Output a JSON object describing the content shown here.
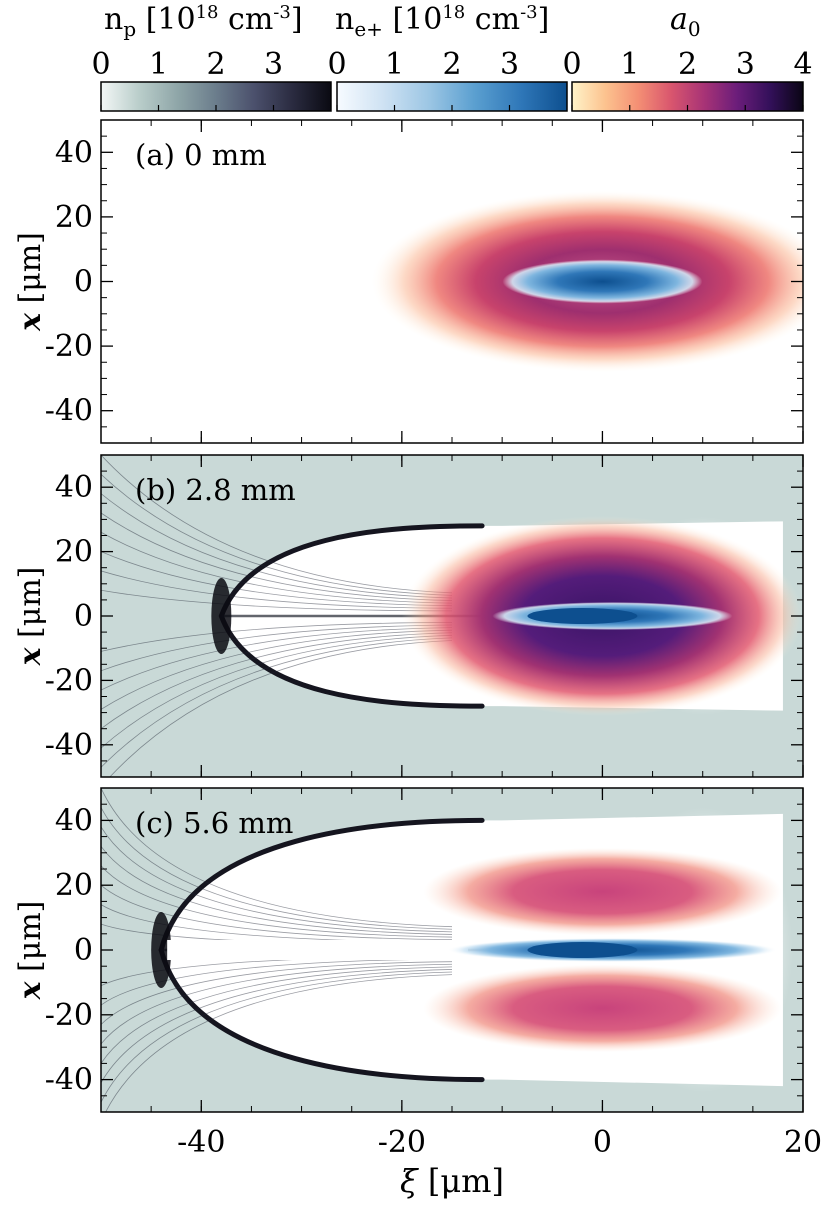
{
  "colorbars": [
    {
      "title": "n",
      "title_sub": "p",
      "title_unit": "[10",
      "title_exp": "18",
      "title_tail": " cm",
      "title_exp2": "-3",
      "title_close": "]",
      "ticks": [
        "0",
        "1",
        "2",
        "3"
      ],
      "colors": [
        "#f3f7f6",
        "#b9cdca",
        "#8fa6a8",
        "#6b7d8c",
        "#4b506c",
        "#2a2b40",
        "#0a0a12"
      ]
    },
    {
      "title": "n",
      "title_sub": "e+",
      "title_unit": "[10",
      "title_exp": "18",
      "title_tail": " cm",
      "title_exp2": "-3",
      "title_close": "]",
      "ticks": [
        "0",
        "1",
        "2",
        "3"
      ],
      "colors": [
        "#f7fbff",
        "#cfe2f3",
        "#9cc6e4",
        "#5a9fd0",
        "#2f77b8",
        "#0d4f8f"
      ]
    },
    {
      "title": "a",
      "title_sub": "0",
      "ticks": [
        "0",
        "1",
        "2",
        "3",
        "4"
      ],
      "colors": [
        "#fff3c9",
        "#fcc38f",
        "#f48f74",
        "#d9566e",
        "#a83376",
        "#6b1d7a",
        "#33105a",
        "#0a0514"
      ]
    }
  ],
  "axis_labels": {
    "y": "x [μm]",
    "y_italic": "x",
    "y_unit": "[μm]",
    "x_italic": "ξ",
    "x_unit": "[μm]"
  },
  "panels": [
    {
      "label": "(a) 0 mm"
    },
    {
      "label": "(b) 2.8 mm"
    },
    {
      "label": "(c) 5.6 mm"
    }
  ],
  "chart_data": {
    "type": "heatmap",
    "x_label": "ξ [μm]",
    "y_label": "x [μm]",
    "xlim": [
      -50,
      20
    ],
    "ylim": [
      -50,
      50
    ],
    "x_ticks": [
      -40,
      -20,
      0,
      20
    ],
    "y_ticks": [
      -40,
      -20,
      0,
      20,
      40
    ],
    "colorbars": [
      {
        "quantity": "n_p [10^18 cm^-3]",
        "range": [
          0,
          4
        ],
        "ticks": [
          0,
          1,
          2,
          3
        ]
      },
      {
        "quantity": "n_e+ [10^18 cm^-3]",
        "range": [
          0,
          4
        ],
        "ticks": [
          0,
          1,
          2,
          3
        ]
      },
      {
        "quantity": "a_0",
        "range": [
          0,
          4
        ],
        "ticks": [
          0,
          1,
          2,
          3,
          4
        ]
      }
    ],
    "panels": [
      {
        "label": "(a) 0 mm",
        "laser_center": [
          0,
          0
        ],
        "laser_rx": 15,
        "laser_ry": 20,
        "laser_peak_a0": 2.5,
        "positron_core": [
          0,
          0
        ],
        "plasma": false
      },
      {
        "label": "(b) 2.8 mm",
        "laser_center": [
          0,
          0
        ],
        "laser_rx": 12,
        "laser_ry": 23,
        "laser_peak_a0": 3.6,
        "positron_core": [
          0,
          0
        ],
        "plasma": true,
        "bubble_back_xi": -38,
        "bubble_half_width": 28
      },
      {
        "label": "(c) 5.6 mm",
        "laser_center": [
          0,
          0
        ],
        "laser_rx": 13,
        "laser_ry": 22,
        "laser_peak_a0": 2.0,
        "positron_core": [
          0,
          0
        ],
        "plasma": true,
        "bubble_back_xi": -44,
        "bubble_half_width": 40
      }
    ]
  }
}
